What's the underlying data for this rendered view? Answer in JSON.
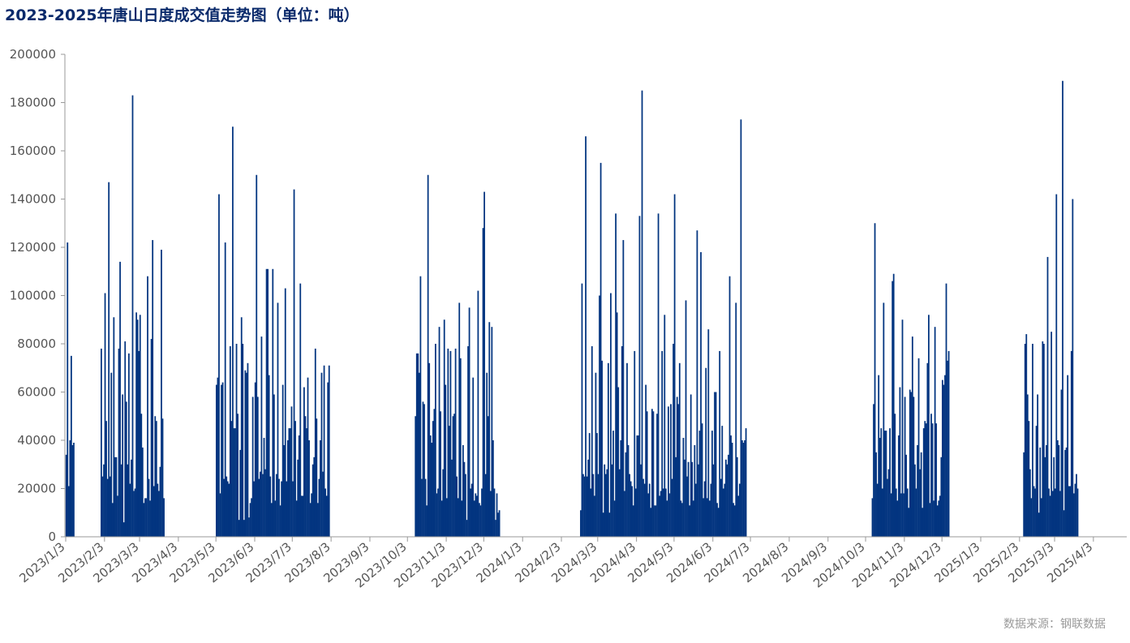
{
  "title": "2023-2025年唐山日度成交值走势图（单位：吨）",
  "source": "数据来源：钢联数据",
  "colors": {
    "bar": "#033580",
    "axis": "#999999",
    "tick_text": "#555555",
    "title": "#0a2a6b"
  },
  "chart_data": {
    "type": "bar",
    "title": "2023-2025年唐山日度成交值走势图（单位：吨）",
    "xlabel": "",
    "ylabel": "",
    "ylim": [
      0,
      200000
    ],
    "yticks": [
      0,
      20000,
      40000,
      60000,
      80000,
      100000,
      120000,
      140000,
      160000,
      180000,
      200000
    ],
    "x_start": "2023/1/3",
    "x_end": "2025/4/29",
    "xtick_labels": [
      "2023/1/3",
      "2023/2/3",
      "2023/3/3",
      "2023/4/3",
      "2023/5/3",
      "2023/6/3",
      "2023/7/3",
      "2023/8/3",
      "2023/9/3",
      "2023/10/3",
      "2023/11/3",
      "2023/12/3",
      "2024/1/3",
      "2024/2/3",
      "2024/3/3",
      "2024/4/3",
      "2024/5/3",
      "2024/6/3",
      "2024/7/3",
      "2024/8/3",
      "2024/9/3",
      "2024/10/3",
      "2024/11/3",
      "2024/12/3",
      "2025/1/3",
      "2025/2/3",
      "2025/3/3",
      "2025/4/3"
    ],
    "grid": false,
    "legend": "none",
    "series": [
      {
        "segments": [
          {
            "start": "2023/1/3",
            "values": [
              34000,
              122000,
              21000,
              40000,
              75000,
              38000,
              39000
            ]
          },
          {
            "start": "2023/1/31",
            "values": [
              78000,
              25000,
              30000,
              101000,
              48000,
              24000,
              147000,
              25000,
              68000,
              14000,
              91000,
              33000,
              33000,
              17000,
              78000,
              114000,
              30000,
              59000,
              6000,
              81000,
              56000,
              30000,
              76000,
              22000,
              32000,
              183000,
              19000,
              20000,
              93000,
              90000,
              77000,
              92000,
              51000,
              37000,
              14000,
              16000,
              16000,
              108000,
              24000,
              15000,
              82000,
              123000,
              21000,
              50000,
              48000,
              22000,
              19000,
              29000,
              119000,
              49000,
              16000
            ]
          },
          {
            "start": "2023/5/3",
            "values": [
              63000,
              66000,
              142000,
              18000,
              63000,
              64000,
              24000,
              122000,
              25000,
              23000,
              22000,
              79000,
              48000,
              170000,
              45000,
              45000,
              80000,
              51000,
              7000,
              36000,
              91000,
              80000,
              7000,
              69000,
              68000,
              72000,
              8000,
              14000,
              16000,
              58000,
              23000,
              64000,
              150000,
              58000,
              24000,
              27000,
              83000,
              26000,
              41000,
              28000,
              111000,
              111000,
              67000,
              25000,
              14000,
              111000,
              59000,
              15000,
              26000,
              97000,
              24000,
              13000,
              23000,
              63000,
              38000,
              103000,
              23000,
              40000,
              45000,
              45000,
              54000,
              23000,
              144000,
              48000,
              15000,
              32000,
              42000,
              105000,
              17000,
              17000,
              62000,
              50000,
              45000,
              66000,
              40000,
              14000,
              18000,
              30000,
              33000,
              78000,
              49000,
              14000,
              24000,
              40000,
              68000,
              27000,
              71000,
              20000,
              17000,
              64000,
              71000
            ]
          },
          {
            "start": "2023/10/9",
            "values": [
              50000,
              76000,
              76000,
              68000,
              108000,
              24000,
              56000,
              55000,
              24000,
              13000,
              150000,
              72000,
              42000,
              39000,
              48000,
              53000,
              80000,
              18000,
              20000,
              87000,
              52000,
              15000,
              28000,
              90000,
              63000,
              16000,
              78000,
              46000,
              77000,
              32000,
              50000,
              51000,
              78000,
              25000,
              16000,
              97000,
              74000,
              15000,
              38000,
              31000,
              26000,
              7000,
              79000,
              95000,
              20000,
              22000,
              66000,
              15000,
              18000,
              17000,
              102000,
              14000,
              13000,
              20000,
              128000,
              143000,
              26000,
              68000,
              50000,
              89000,
              19000,
              87000,
              40000,
              20000,
              7000,
              18000,
              10000,
              11000
            ]
          },
          {
            "start": "2024/2/18",
            "values": [
              11000,
              105000,
              26000,
              25000,
              166000,
              25000,
              32000,
              43000,
              20000,
              79000,
              26000,
              17000,
              68000,
              43000,
              26000,
              100000,
              155000,
              73000,
              10000,
              30000,
              26000,
              28000,
              72000,
              10000,
              101000,
              30000,
              44000,
              15000,
              134000,
              93000,
              62000,
              28000,
              40000,
              79000,
              123000,
              19000,
              35000,
              72000,
              38000,
              26000,
              23000,
              21000,
              13000,
              77000,
              20000,
              42000,
              42000,
              133000,
              30000,
              185000,
              24000,
              22000,
              63000,
              52000,
              18000,
              22000,
              12000,
              53000,
              52000,
              13000,
              13000,
              51000,
              134000,
              17000,
              19000,
              77000,
              20000,
              92000,
              20000,
              15000,
              54000,
              18000,
              55000,
              24000,
              80000,
              142000,
              33000,
              58000,
              55000,
              72000,
              15000,
              14000,
              41000,
              32000,
              98000,
              25000,
              31000,
              13000,
              59000,
              31000,
              15000,
              38000,
              22000,
              127000,
              30000,
              44000,
              118000,
              47000,
              16000,
              23000,
              70000,
              16000,
              86000,
              15000,
              22000,
              44000,
              30000,
              60000,
              60000,
              14000,
              12000,
              77000,
              24000,
              46000,
              20000,
              22000,
              32000,
              30000,
              34000,
              108000,
              42000,
              39000,
              14000,
              13000,
              97000,
              33000,
              17000,
              22000,
              173000,
              40000,
              39000,
              40000,
              45000
            ]
          },
          {
            "start": "2024/10/8",
            "values": [
              16000,
              55000,
              130000,
              35000,
              22000,
              67000,
              41000,
              45000,
              20000,
              97000,
              44000,
              44000,
              24000,
              28000,
              45000,
              18000,
              106000,
              109000,
              51000,
              20000,
              15000,
              42000,
              62000,
              18000,
              90000,
              18000,
              58000,
              34000,
              20000,
              12000,
              61000,
              60000,
              83000,
              58000,
              30000,
              20000,
              38000,
              74000,
              28000,
              35000,
              12000,
              45000,
              48000,
              47000,
              72000,
              92000,
              14000,
              51000,
              47000,
              15000,
              87000,
              47000,
              13000,
              15000,
              17000,
              33000,
              65000,
              63000,
              67000,
              105000,
              73000,
              77000
            ]
          },
          {
            "start": "2025/2/6",
            "values": [
              35000,
              80000,
              84000,
              59000,
              48000,
              28000,
              16000,
              80000,
              21000,
              20000,
              46000,
              59000,
              10000,
              37000,
              16000,
              81000,
              80000,
              33000,
              38000,
              116000,
              20000,
              17000,
              85000,
              19000,
              33000,
              20000,
              142000,
              40000,
              38000,
              19000,
              61000,
              189000,
              11000,
              36000,
              37000,
              67000,
              21000,
              21000,
              77000,
              140000,
              18000,
              22000,
              26000,
              20000
            ]
          }
        ]
      }
    ]
  }
}
